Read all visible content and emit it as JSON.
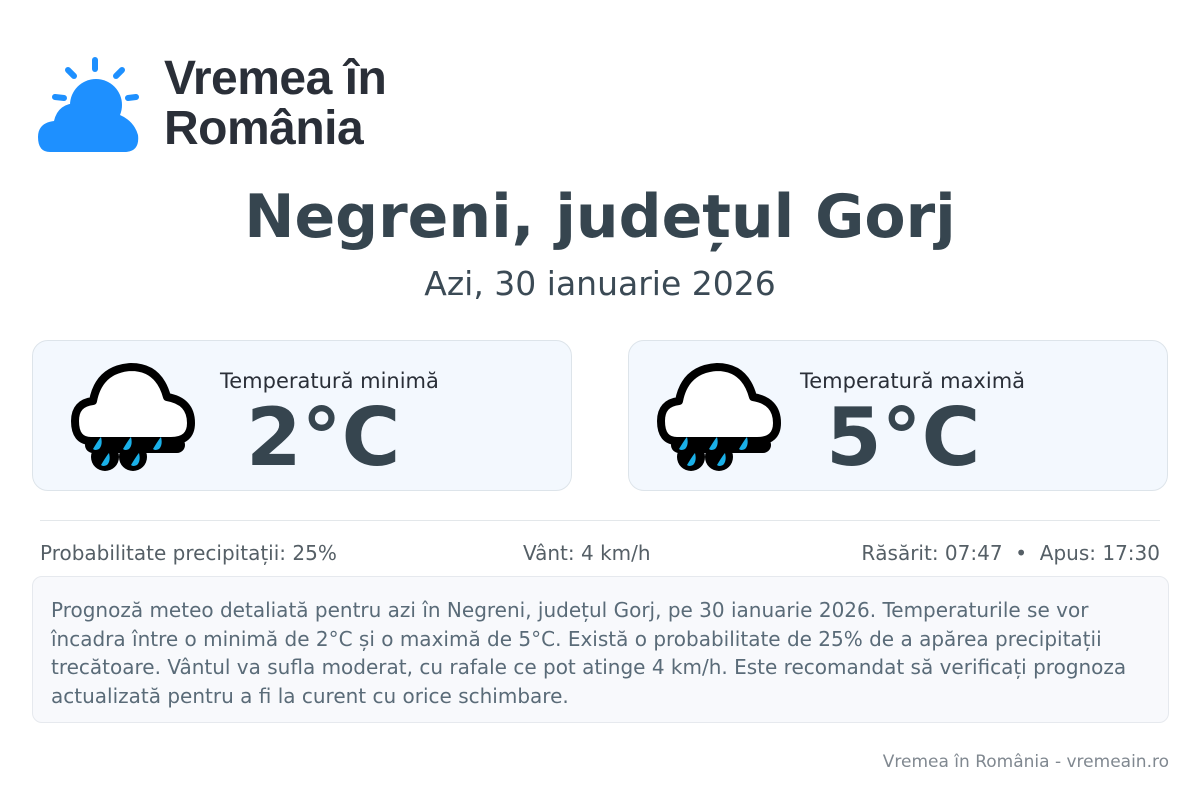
{
  "logo": {
    "line1": "Vremea în",
    "line2": "România",
    "color": "#1e90ff"
  },
  "header": {
    "title": "Negreni, județul Gorj",
    "date": "Azi, 30 ianuarie 2026"
  },
  "cards": [
    {
      "label": "Temperatură minimă",
      "value": "2°C",
      "icon": "rain-cloud-icon"
    },
    {
      "label": "Temperatură maximă",
      "value": "5°C",
      "icon": "rain-cloud-icon"
    }
  ],
  "stats": {
    "precip": "Probabilitate precipitații: 25%",
    "wind": "Vânt: 4 km/h",
    "sun": "Răsărit: 07:47  •  Apus: 17:30"
  },
  "description": "Prognoză meteo detaliată pentru azi în Negreni, județul Gorj, pe 30 ianuarie 2026. Temperaturile se vor încadra între o minimă de 2°C și o maximă de 5°C. Există o probabilitate de 25% de a apărea precipitații trecătoare. Vântul va sufla moderat, cu rafale ce pot atinge 4 km/h. Este recomandat să verificați prognoza actualizată pentru a fi la curent cu orice schimbare.",
  "footer": "Vremea în România - vremeain.ro"
}
